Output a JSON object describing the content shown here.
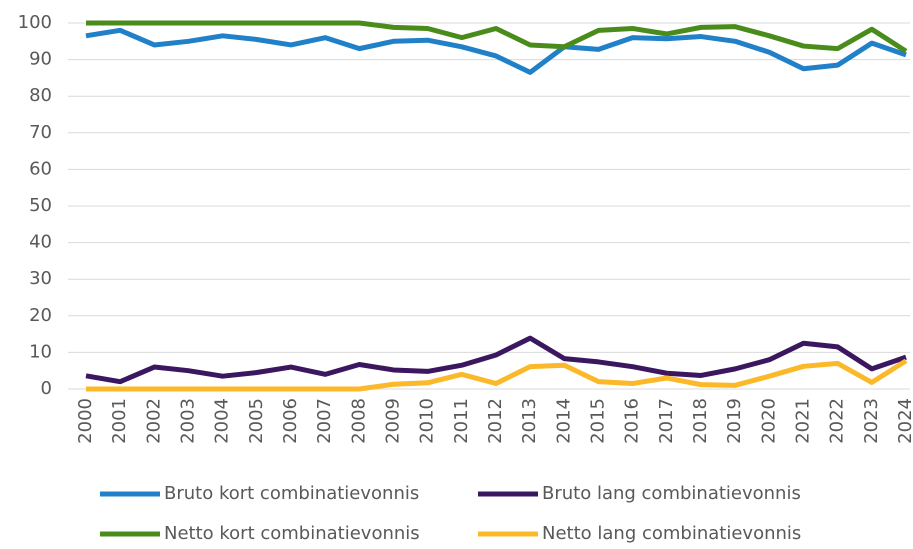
{
  "chart_data": {
    "type": "line",
    "categories": [
      "2000",
      "2001",
      "2002",
      "2003",
      "2004",
      "2005",
      "2006",
      "2007",
      "2008",
      "2009",
      "2010",
      "2011",
      "2012",
      "2013",
      "2014",
      "2015",
      "2016",
      "2017",
      "2018",
      "2019",
      "2020",
      "2021",
      "2022",
      "2023",
      "2024"
    ],
    "series": [
      {
        "name": "Bruto kort combinatievonnis",
        "color": "#2080c8",
        "values": [
          96.5,
          98,
          94,
          95,
          96.5,
          95.5,
          94,
          96,
          93,
          95,
          95.3,
          93.5,
          91,
          86.5,
          93.5,
          92.8,
          96,
          95.7,
          96.3,
          95,
          92,
          87.5,
          88.5,
          94.5,
          91.3
        ]
      },
      {
        "name": "Bruto lang combinatievonnis",
        "color": "#3b1760",
        "values": [
          3.6,
          2,
          6,
          5,
          3.5,
          4.5,
          6,
          4,
          6.7,
          5.2,
          4.8,
          6.5,
          9.3,
          13.9,
          8.3,
          7.4,
          6.1,
          4.3,
          3.7,
          5.5,
          8,
          12.5,
          11.5,
          5.5,
          8.7
        ]
      },
      {
        "name": "Netto kort combinatievonnis",
        "color": "#4a8c1c",
        "values": [
          100,
          100,
          100,
          100,
          100,
          100,
          100,
          100,
          100,
          98.8,
          98.5,
          96,
          98.5,
          94,
          93.5,
          98,
          98.5,
          97,
          98.8,
          99,
          96.5,
          93.7,
          93,
          98.3,
          92.3
        ]
      },
      {
        "name": "Netto lang combinatievonnis",
        "color": "#fbb829",
        "values": [
          0,
          0,
          0,
          0,
          0,
          0,
          0,
          0,
          0,
          1.3,
          1.7,
          4,
          1.5,
          6.1,
          6.5,
          2,
          1.5,
          3,
          1.2,
          1,
          3.5,
          6.2,
          7,
          1.8,
          7.7
        ]
      }
    ],
    "ylim": [
      0,
      100
    ],
    "yticks": [
      0,
      10,
      20,
      30,
      40,
      50,
      60,
      70,
      80,
      90,
      100
    ],
    "grid": true
  }
}
